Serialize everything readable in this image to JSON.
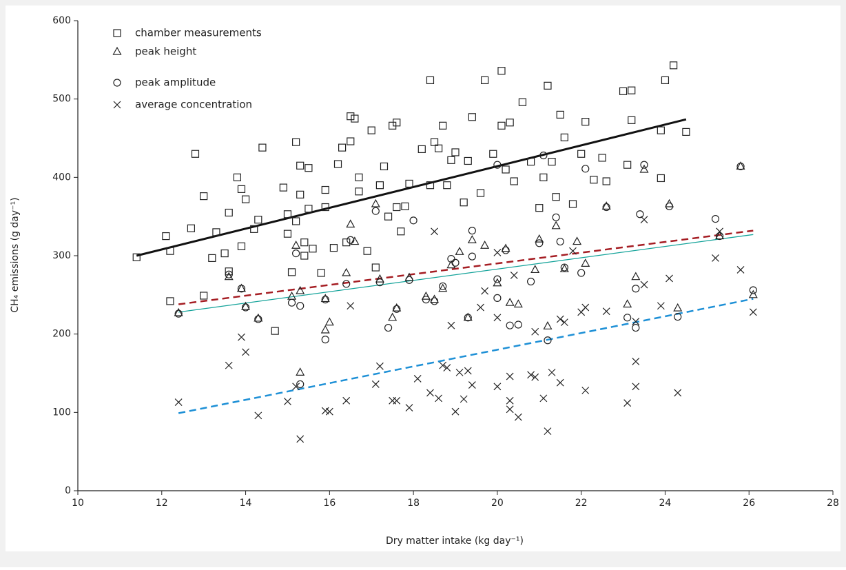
{
  "chart_data": {
    "type": "scatter",
    "x_label": "Dry matter intake (kg day⁻¹)",
    "y_label": "CH₄ emissions (g day⁻¹)",
    "xlim": [
      10,
      28
    ],
    "xticks": [
      10,
      12,
      14,
      16,
      18,
      20,
      22,
      24,
      26,
      28
    ],
    "ylim": [
      0,
      600
    ],
    "yticks": [
      0,
      100,
      200,
      300,
      400,
      500,
      600
    ],
    "legend": "upper left",
    "series": [
      {
        "name": "chamber measurements",
        "marker": "square",
        "color": "#222222",
        "x": [
          11.4,
          12.1,
          12.2,
          12.2,
          12.7,
          12.8,
          13.0,
          13.0,
          13.2,
          13.3,
          13.5,
          13.6,
          13.6,
          13.8,
          13.9,
          13.9,
          14.0,
          14.2,
          14.3,
          14.4,
          14.7,
          14.9,
          15.0,
          15.0,
          15.1,
          15.2,
          15.2,
          15.3,
          15.3,
          15.4,
          15.4,
          15.5,
          15.5,
          15.6,
          15.8,
          15.9,
          15.9,
          16.1,
          16.2,
          16.3,
          16.4,
          16.5,
          16.5,
          16.6,
          16.7,
          16.7,
          16.9,
          17.0,
          17.1,
          17.2,
          17.3,
          17.4,
          17.5,
          17.6,
          17.6,
          17.7,
          17.8,
          17.9,
          18.2,
          18.4,
          18.4,
          18.5,
          18.6,
          18.7,
          18.8,
          18.9,
          19.0,
          19.2,
          19.3,
          19.4,
          19.6,
          19.7,
          19.9,
          20.1,
          20.1,
          20.2,
          20.3,
          20.4,
          20.6,
          20.8,
          21.0,
          21.1,
          21.2,
          21.3,
          21.4,
          21.5,
          21.6,
          21.8,
          22.0,
          22.1,
          22.3,
          22.5,
          22.6,
          23.0,
          23.1,
          23.2,
          23.2,
          23.9,
          23.9,
          24.0,
          24.2,
          24.5
        ],
        "values": [
          298,
          325,
          242,
          306,
          335,
          430,
          249,
          376,
          297,
          330,
          303,
          355,
          280,
          400,
          385,
          312,
          372,
          334,
          346,
          438,
          204,
          387,
          328,
          353,
          279,
          445,
          344,
          415,
          378,
          300,
          317,
          412,
          360,
          309,
          278,
          384,
          362,
          310,
          417,
          438,
          317,
          478,
          446,
          475,
          382,
          400,
          306,
          460,
          285,
          390,
          414,
          350,
          466,
          470,
          362,
          331,
          363,
          392,
          436,
          524,
          390,
          445,
          437,
          466,
          390,
          422,
          432,
          368,
          421,
          477,
          380,
          524,
          430,
          536,
          466,
          410,
          470,
          395,
          496,
          420,
          361,
          400,
          517,
          420,
          375,
          480,
          451,
          366,
          430,
          471,
          397,
          425,
          395,
          510,
          416,
          511,
          473,
          460,
          399,
          524,
          543,
          458
        ]
      },
      {
        "name": "peak height",
        "marker": "triangle",
        "color": "#222222",
        "x": [
          12.4,
          13.6,
          13.9,
          14.0,
          14.3,
          15.1,
          15.2,
          15.3,
          15.3,
          15.9,
          15.9,
          16.0,
          16.4,
          16.5,
          16.6,
          17.1,
          17.2,
          17.5,
          17.6,
          17.9,
          18.3,
          18.5,
          18.7,
          18.9,
          19.1,
          19.3,
          19.4,
          19.7,
          20.0,
          20.2,
          20.3,
          20.5,
          20.9,
          21.0,
          21.2,
          21.4,
          21.6,
          21.9,
          22.1,
          22.6,
          23.1,
          23.3,
          23.5,
          24.1,
          24.3,
          25.3,
          25.8,
          26.1
        ],
        "values": [
          227,
          273,
          258,
          235,
          220,
          248,
          313,
          255,
          151,
          245,
          205,
          215,
          278,
          340,
          318,
          366,
          270,
          221,
          233,
          272,
          248,
          244,
          258,
          288,
          305,
          221,
          320,
          313,
          265,
          309,
          240,
          238,
          282,
          321,
          210,
          338,
          283,
          318,
          290,
          363,
          238,
          273,
          410,
          366,
          233,
          325,
          414,
          250
        ]
      },
      {
        "name": "peak amplitude",
        "marker": "circle",
        "color": "#222222",
        "x": [
          12.4,
          13.6,
          13.9,
          14.0,
          14.3,
          15.1,
          15.2,
          15.3,
          15.3,
          15.9,
          15.9,
          16.4,
          16.5,
          17.1,
          17.2,
          17.4,
          17.6,
          17.9,
          18.0,
          18.3,
          18.5,
          18.7,
          18.9,
          19.0,
          19.3,
          19.4,
          19.4,
          20.0,
          20.0,
          20.0,
          20.2,
          20.3,
          20.5,
          20.8,
          21.0,
          21.1,
          21.2,
          21.4,
          21.5,
          21.6,
          22.0,
          22.1,
          22.6,
          23.1,
          23.3,
          23.3,
          23.4,
          23.5,
          24.1,
          24.3,
          25.2,
          25.3,
          25.8,
          26.1
        ],
        "values": [
          226,
          276,
          258,
          234,
          219,
          240,
          303,
          236,
          136,
          193,
          244,
          264,
          320,
          357,
          266,
          208,
          232,
          269,
          345,
          244,
          242,
          261,
          296,
          291,
          221,
          332,
          299,
          416,
          270,
          246,
          307,
          211,
          212,
          267,
          316,
          428,
          192,
          349,
          318,
          285,
          278,
          411,
          362,
          221,
          258,
          208,
          353,
          416,
          363,
          222,
          347,
          325,
          414,
          256
        ]
      },
      {
        "name": "average concentration",
        "marker": "cross",
        "color": "#222222",
        "x": [
          12.4,
          13.6,
          13.9,
          14.0,
          14.3,
          15.0,
          15.2,
          15.3,
          15.9,
          16.0,
          16.4,
          16.5,
          17.1,
          17.2,
          17.5,
          17.6,
          17.9,
          18.1,
          18.4,
          18.5,
          18.6,
          18.7,
          18.8,
          18.9,
          19.0,
          19.1,
          19.2,
          19.3,
          19.4,
          19.6,
          19.7,
          20.0,
          20.0,
          20.0,
          20.3,
          20.3,
          20.3,
          20.4,
          20.5,
          20.8,
          20.9,
          20.9,
          21.1,
          21.2,
          21.3,
          21.5,
          21.5,
          21.6,
          21.8,
          22.0,
          22.1,
          22.1,
          22.6,
          23.1,
          23.3,
          23.3,
          23.3,
          23.5,
          23.5,
          23.9,
          24.1,
          24.3,
          25.2,
          25.3,
          25.8,
          26.1
        ],
        "values": [
          113,
          160,
          196,
          177,
          96,
          114,
          133,
          66,
          102,
          101,
          115,
          236,
          136,
          159,
          115,
          115,
          106,
          143,
          125,
          331,
          118,
          160,
          157,
          211,
          101,
          151,
          117,
          153,
          135,
          234,
          255,
          304,
          133,
          221,
          146,
          115,
          104,
          275,
          94,
          148,
          145,
          203,
          118,
          76,
          151,
          138,
          219,
          215,
          306,
          228,
          128,
          234,
          229,
          112,
          165,
          133,
          216,
          263,
          346,
          236,
          271,
          125,
          297,
          331,
          282,
          228
        ]
      }
    ],
    "trend_lines": [
      {
        "x": [
          11.4,
          24.5
        ],
        "values": [
          300,
          474
        ],
        "color": "#111111",
        "style": "solid",
        "width": 3
      },
      {
        "x": [
          12.4,
          26.1
        ],
        "values": [
          238,
          332
        ],
        "color": "#a51d23",
        "style": "dashed",
        "width": 2.5
      },
      {
        "x": [
          12.4,
          26.1
        ],
        "values": [
          228,
          327
        ],
        "color": "#14a39a",
        "style": "solid",
        "width": 1.3
      },
      {
        "x": [
          12.4,
          26.1
        ],
        "values": [
          99,
          245
        ],
        "color": "#1e90d6",
        "style": "dashed",
        "width": 2.5
      }
    ]
  }
}
